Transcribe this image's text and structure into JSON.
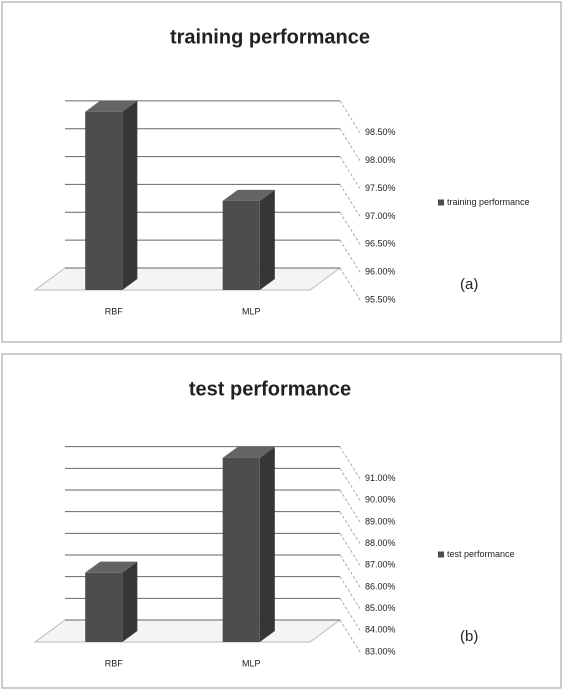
{
  "chart_data": [
    {
      "type": "bar3d",
      "title": "training performance",
      "annotation": "(a)",
      "categories": [
        "RBF",
        "MLP"
      ],
      "series": [
        {
          "name": "training performance",
          "color": "#4d4d4d",
          "values": [
            98.7,
            97.1
          ]
        }
      ],
      "ylim": [
        95.5,
        99
      ],
      "yticks": [
        {
          "value": 95.5,
          "label": "95.50%"
        },
        {
          "value": 96,
          "label": "96.00%"
        },
        {
          "value": 96.5,
          "label": "96.50%"
        },
        {
          "value": 97,
          "label": "97.00%"
        },
        {
          "value": 97.5,
          "label": "97.50%"
        },
        {
          "value": 98,
          "label": "98.00%"
        },
        {
          "value": 98.5,
          "label": "98.50%"
        }
      ],
      "grid": true
    },
    {
      "type": "bar3d",
      "title": "test performance",
      "annotation": "(b)",
      "categories": [
        "RBF",
        "MLP"
      ],
      "series": [
        {
          "name": "test performance",
          "color": "#4d4d4d",
          "values": [
            86.2,
            91.5
          ]
        }
      ],
      "ylim": [
        83,
        92
      ],
      "yticks": [
        {
          "value": 83,
          "label": "83.00%"
        },
        {
          "value": 84,
          "label": "84.00%"
        },
        {
          "value": 85,
          "label": "85.00%"
        },
        {
          "value": 86,
          "label": "86.00%"
        },
        {
          "value": 87,
          "label": "87.00%"
        },
        {
          "value": 88,
          "label": "88.00%"
        },
        {
          "value": 89,
          "label": "89.00%"
        },
        {
          "value": 90,
          "label": "90.00%"
        },
        {
          "value": 91,
          "label": "91.00%"
        }
      ],
      "grid": true
    }
  ]
}
